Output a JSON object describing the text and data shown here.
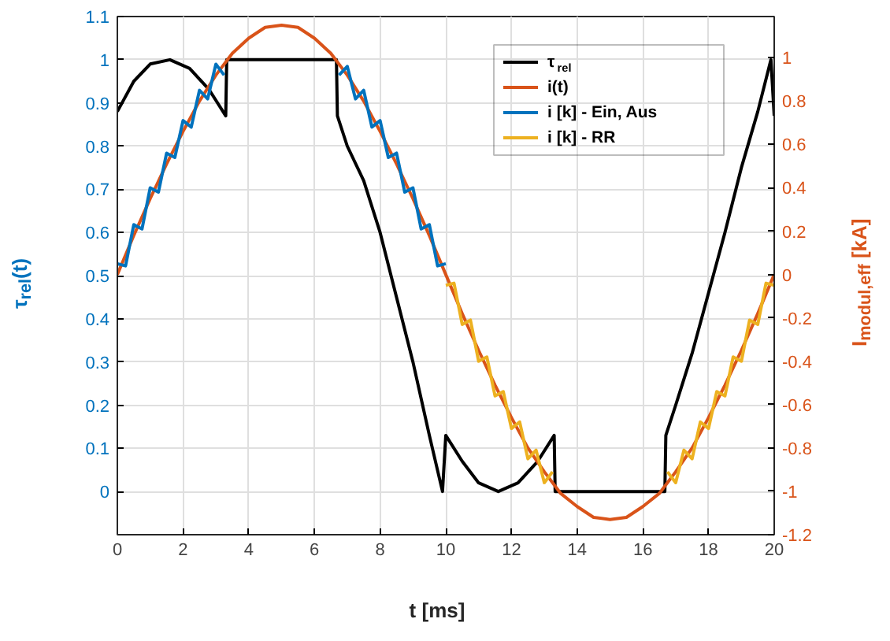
{
  "chart_data": {
    "type": "line",
    "xlabel": "t [ms]",
    "ylabel": "τ$_{rel}$(t)",
    "y2label": "I$_{modul,eff}$ [kA]",
    "xlim": [
      0,
      20
    ],
    "xticks": [
      0,
      2,
      4,
      6,
      8,
      10,
      12,
      14,
      16,
      18,
      20
    ],
    "ylim": [
      -0.1,
      1.1
    ],
    "yticks": [
      0,
      0.1,
      0.2,
      0.3,
      0.4,
      0.5,
      0.6,
      0.7,
      0.8,
      0.9,
      1,
      1.1
    ],
    "y2lim": [
      -1.2,
      1.19
    ],
    "y2ticks": [
      -1.2,
      -1,
      -0.8,
      -0.6,
      -0.4,
      -0.2,
      0,
      0.2,
      0.4,
      0.6,
      0.8,
      1
    ],
    "grid": true,
    "legend": "top right",
    "marker": "none",
    "line_style": "solid",
    "series": [
      {
        "name": "τ$_{rel}$",
        "color": "#000000",
        "x": [
          0,
          0.5,
          1,
          1.6,
          2.2,
          2.8,
          3.3,
          3.33,
          6.67,
          6.7,
          7,
          7.5,
          8,
          8.5,
          9,
          9.5,
          9.9,
          10,
          10.5,
          11,
          11.6,
          12.2,
          12.8,
          13.3,
          13.33,
          16.67,
          16.7,
          17,
          17.5,
          18,
          18.5,
          19,
          19.5,
          19.9,
          20
        ],
        "values": [
          0.88,
          0.95,
          0.99,
          1.0,
          0.98,
          0.93,
          0.87,
          1.0,
          1.0,
          0.87,
          0.8,
          0.72,
          0.6,
          0.45,
          0.3,
          0.13,
          0,
          0.13,
          0.07,
          0.02,
          0,
          0.02,
          0.07,
          0.13,
          0,
          0,
          0.13,
          0.2,
          0.32,
          0.46,
          0.6,
          0.75,
          0.88,
          1.0,
          0.87
        ]
      },
      {
        "name": "i(t)",
        "color": "#d95319",
        "axis": "y2",
        "x": [
          0,
          0.5,
          1,
          1.5,
          2,
          2.5,
          3,
          3.5,
          4,
          4.5,
          5,
          5.5,
          6,
          6.5,
          7,
          7.5,
          8,
          8.5,
          9,
          9.5,
          10,
          10.5,
          11,
          11.5,
          12,
          12.5,
          13,
          13.5,
          14,
          14.5,
          15,
          15.5,
          16,
          16.5,
          17,
          17.5,
          18,
          18.5,
          19,
          19.5,
          20
        ],
        "values": [
          0,
          0.18,
          0.35,
          0.51,
          0.66,
          0.8,
          0.92,
          1.02,
          1.09,
          1.14,
          1.15,
          1.14,
          1.09,
          1.02,
          0.92,
          0.8,
          0.66,
          0.51,
          0.35,
          0.18,
          0,
          -0.18,
          -0.35,
          -0.51,
          -0.66,
          -0.8,
          -0.91,
          -1.01,
          -1.07,
          -1.12,
          -1.13,
          -1.12,
          -1.07,
          -1.01,
          -0.91,
          -0.8,
          -0.66,
          -0.51,
          -0.35,
          -0.18,
          0
        ]
      },
      {
        "name": "i [k] - Ein, Aus",
        "color": "#0072bd",
        "axis": "y2",
        "x": [
          0,
          0.25,
          0.5,
          0.75,
          1,
          1.25,
          1.5,
          1.75,
          2,
          2.25,
          2.5,
          2.75,
          3,
          3.25,
          3.5,
          3.75,
          4,
          4.25,
          4.5,
          4.75,
          5,
          5.25,
          5.5,
          5.75,
          6,
          6.25,
          6.5,
          6.75,
          7,
          7.25,
          7.5,
          7.75,
          8,
          8.25,
          8.5,
          8.75,
          9,
          9.25,
          9.5,
          9.75,
          10
        ],
        "values": [
          0.05,
          0.04,
          0.23,
          0.21,
          0.4,
          0.38,
          0.56,
          0.54,
          0.71,
          0.68,
          0.85,
          0.81,
          0.97,
          0.92,
          null,
          null,
          null,
          null,
          null,
          null,
          null,
          null,
          null,
          null,
          null,
          null,
          null,
          0.92,
          0.96,
          0.81,
          0.85,
          0.68,
          0.71,
          0.54,
          0.56,
          0.38,
          0.4,
          0.21,
          0.23,
          0.04,
          0.05
        ]
      },
      {
        "name": "i [k] - RR",
        "color": "#edb120",
        "axis": "y2",
        "x": [
          10,
          10.25,
          10.5,
          10.75,
          11,
          11.25,
          11.5,
          11.75,
          12,
          12.25,
          12.5,
          12.75,
          13,
          13.25,
          13.5,
          13.75,
          14,
          14.25,
          14.5,
          14.75,
          15,
          15.25,
          15.5,
          15.75,
          16,
          16.25,
          16.5,
          16.75,
          17,
          17.25,
          17.5,
          17.75,
          18,
          18.25,
          18.5,
          18.75,
          19,
          19.25,
          19.5,
          19.75,
          20
        ],
        "values": [
          -0.05,
          -0.04,
          -0.23,
          -0.21,
          -0.4,
          -0.38,
          -0.56,
          -0.54,
          -0.71,
          -0.68,
          -0.85,
          -0.81,
          -0.96,
          -0.91,
          null,
          null,
          null,
          null,
          null,
          null,
          null,
          null,
          null,
          null,
          null,
          null,
          null,
          -0.91,
          -0.96,
          -0.81,
          -0.85,
          -0.68,
          -0.71,
          -0.54,
          -0.56,
          -0.38,
          -0.4,
          -0.21,
          -0.23,
          -0.04,
          -0.05
        ]
      }
    ]
  }
}
